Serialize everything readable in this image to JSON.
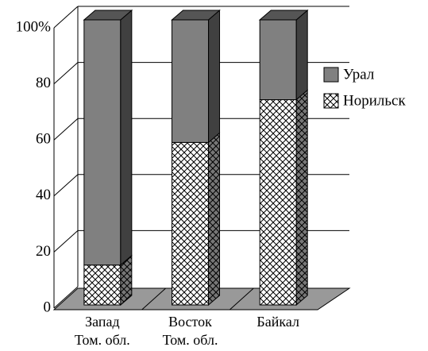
{
  "chart_data": {
    "type": "bar",
    "stacked": true,
    "categories": [
      "Запад\nТом. обл.",
      "Восток\nТом. обл.",
      "Байкал"
    ],
    "series": [
      {
        "name": "Урал",
        "color": "#808080",
        "values": [
          86,
          43,
          28
        ]
      },
      {
        "name": "Норильск",
        "color": "hatch",
        "values": [
          14,
          57,
          72
        ]
      }
    ],
    "ylim": [
      0,
      100
    ],
    "yticks": [
      0,
      20,
      40,
      60,
      80,
      {
        "value": 100,
        "label": "100%"
      }
    ],
    "grid": true,
    "legend": "right"
  }
}
